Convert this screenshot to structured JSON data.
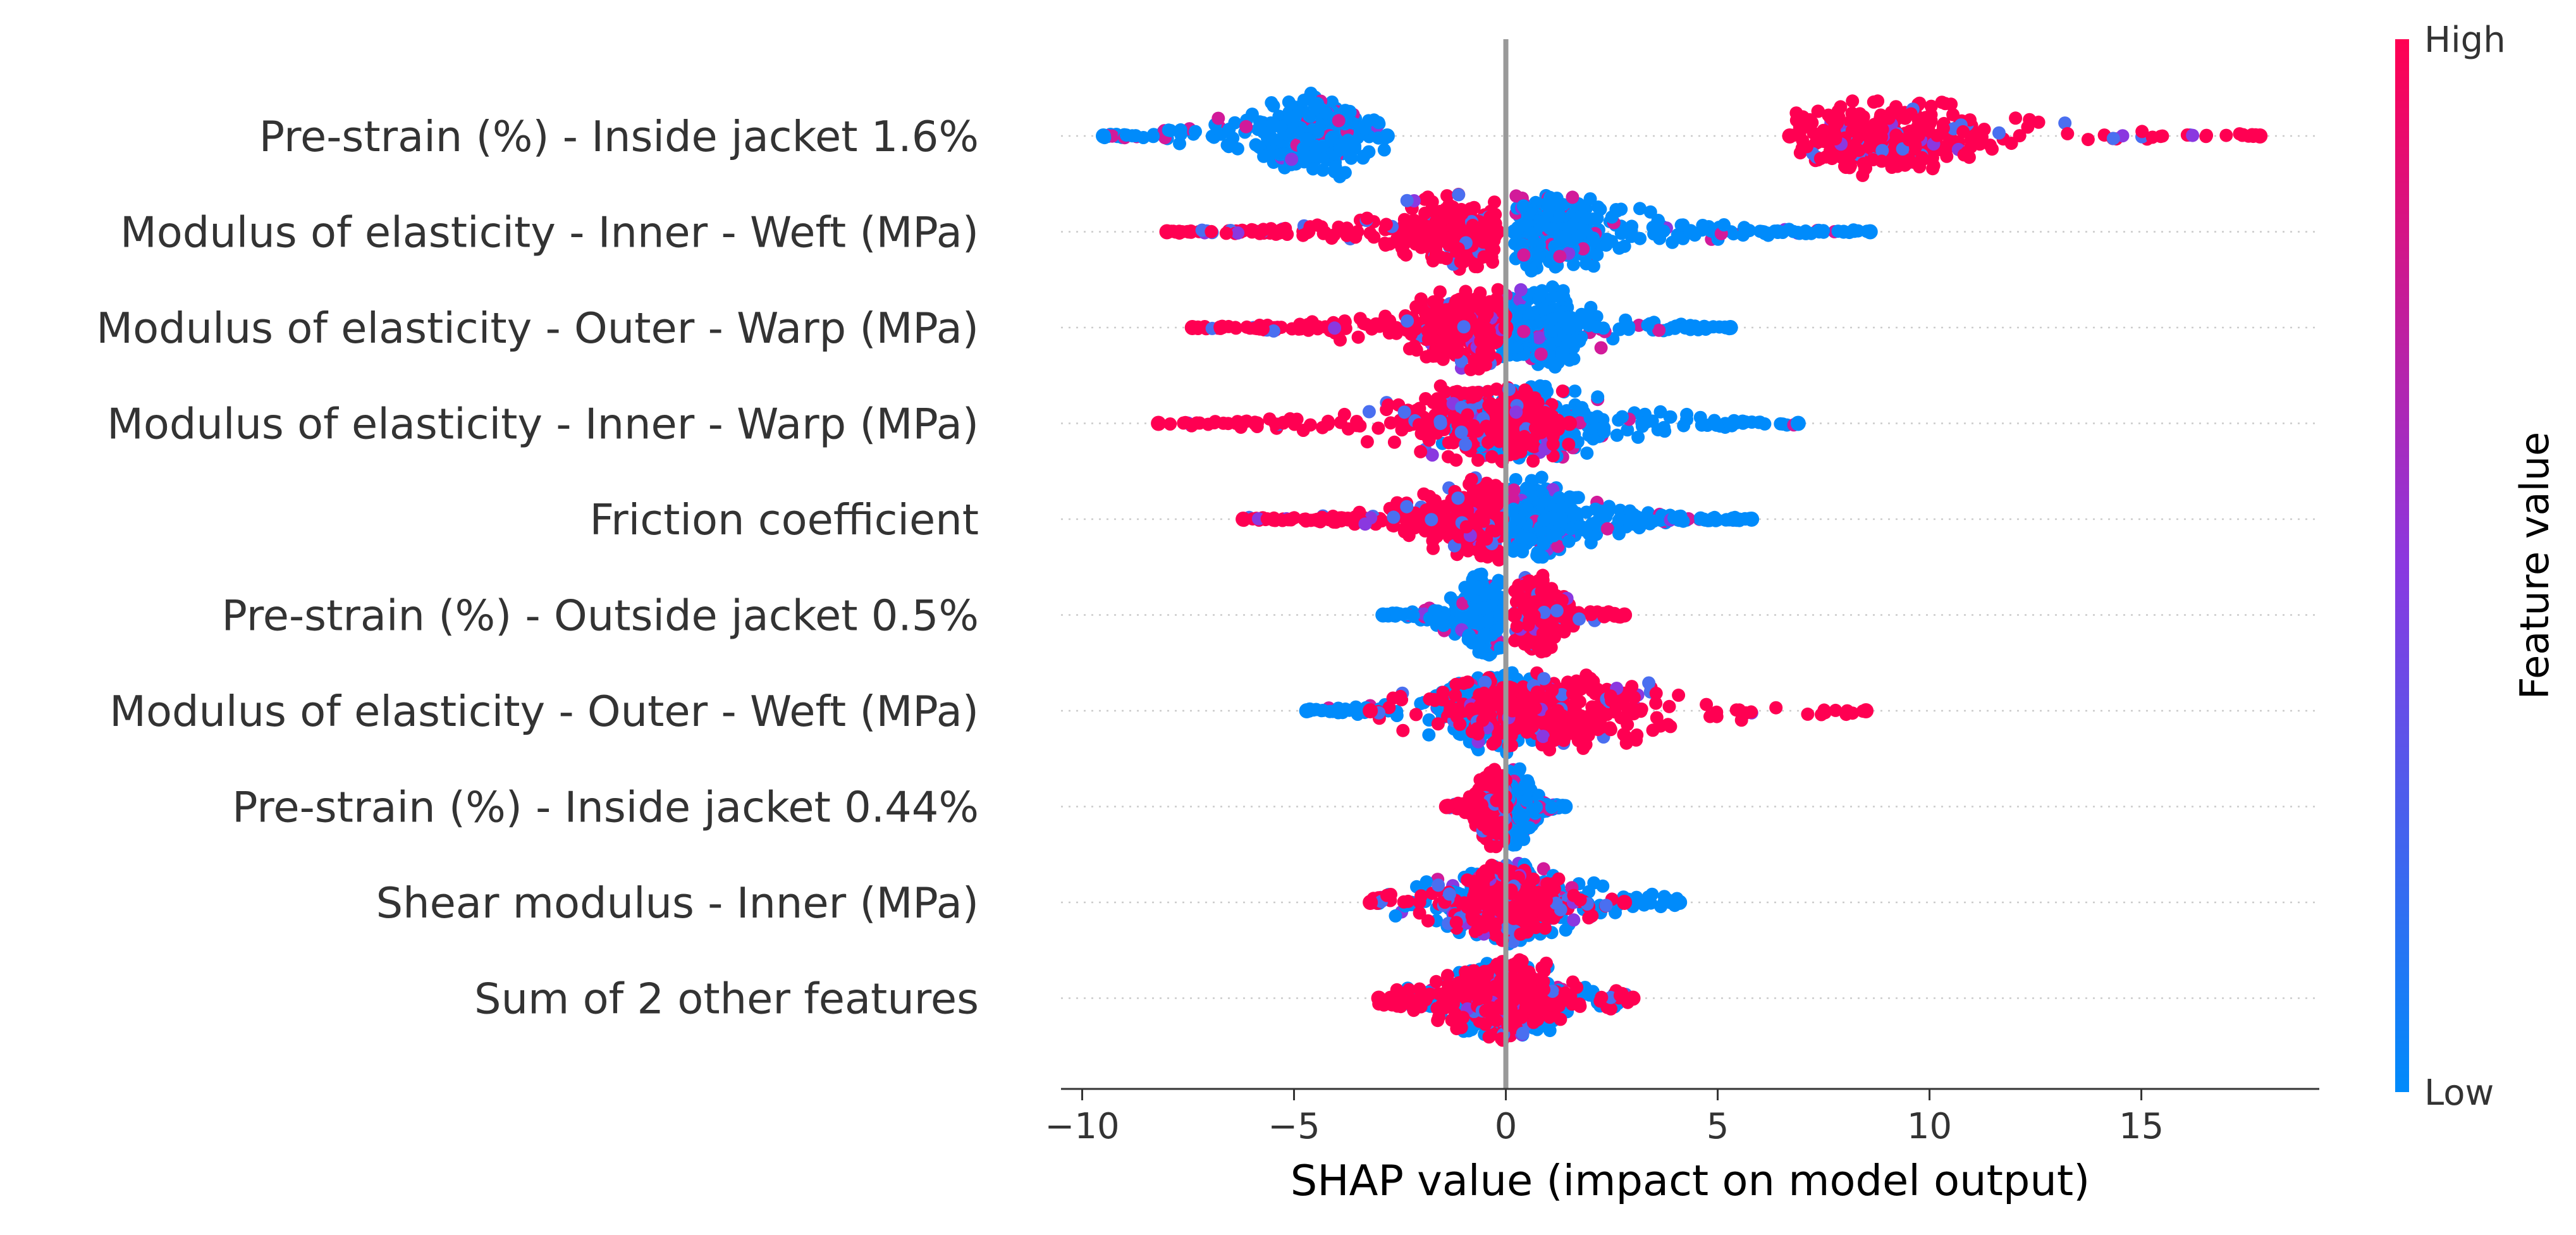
{
  "chart_data": {
    "type": "scatter",
    "subtype": "shap-beeswarm",
    "xlabel": "SHAP value (impact on model output)",
    "xlim": [
      -10.5,
      19.2
    ],
    "xticks": [
      -10,
      -5,
      0,
      5,
      10,
      15
    ],
    "xtick_labels": [
      "−10",
      "−5",
      "0",
      "5",
      "10",
      "15"
    ],
    "zero_line": 0,
    "colorbar": {
      "title": "Feature value",
      "high_label": "High",
      "low_label": "Low",
      "low_color": "#008bfb",
      "mid_color": "#8a38e0",
      "high_color": "#ff0052"
    },
    "features": [
      {
        "name": "Pre-strain (%) - Inside jacket 1.6%",
        "low": {
          "range": [
            -9.5,
            -2.8
          ],
          "peak": -4.5
        },
        "high": {
          "range": [
            6.7,
            17.8
          ],
          "peak": 9.0
        }
      },
      {
        "name": "Modulus of elasticity - Inner - Weft (MPa)",
        "low": {
          "range": [
            0.2,
            8.6
          ],
          "peak": 1.0
        },
        "high": {
          "range": [
            -8.0,
            -0.2
          ],
          "peak": -0.8
        }
      },
      {
        "name": "Modulus of elasticity - Outer - Warp (MPa)",
        "low": {
          "range": [
            -0.2,
            5.3
          ],
          "peak": 0.7
        },
        "high": {
          "range": [
            -7.4,
            0.0
          ],
          "peak": -1.0
        }
      },
      {
        "name": "Modulus of elasticity - Inner - Warp (MPa)",
        "low": {
          "range": [
            -1.5,
            6.9
          ],
          "peak": 0.3
        },
        "high": {
          "range": [
            -8.2,
            1.5
          ],
          "peak": -0.5
        }
      },
      {
        "name": "Friction coefficient",
        "low": {
          "range": [
            0.1,
            5.8
          ],
          "peak": 0.5
        },
        "high": {
          "range": [
            -6.2,
            -0.1
          ],
          "peak": -0.5
        }
      },
      {
        "name": "Pre-strain (%) - Outside jacket 0.5%",
        "low": {
          "range": [
            -2.9,
            -0.1
          ],
          "peak": -0.5
        },
        "high": {
          "range": [
            0.2,
            2.8
          ],
          "peak": 0.7
        }
      },
      {
        "name": "Modulus of elasticity - Outer - Weft (MPa)",
        "low": {
          "range": [
            -4.7,
            1.2
          ],
          "peak": -0.2
        },
        "high": {
          "range": [
            -3.2,
            8.5
          ],
          "peak": 0.8
        }
      },
      {
        "name": "Pre-strain (%) - Inside jacket 0.44%",
        "low": {
          "range": [
            0.0,
            1.4
          ],
          "peak": 0.2
        },
        "high": {
          "range": [
            -1.4,
            0.0
          ],
          "peak": -0.3
        }
      },
      {
        "name": "Shear modulus - Inner (MPa)",
        "low": {
          "range": [
            -3.0,
            4.1
          ],
          "peak": 0.0
        },
        "high": {
          "range": [
            -3.2,
            2.8
          ],
          "peak": 0.0
        }
      },
      {
        "name": "Sum of 2 other features",
        "low": {
          "range": [
            -2.7,
            2.9
          ],
          "peak": 0.0
        },
        "high": {
          "range": [
            -3.0,
            3.0
          ],
          "peak": 0.0
        }
      }
    ]
  }
}
